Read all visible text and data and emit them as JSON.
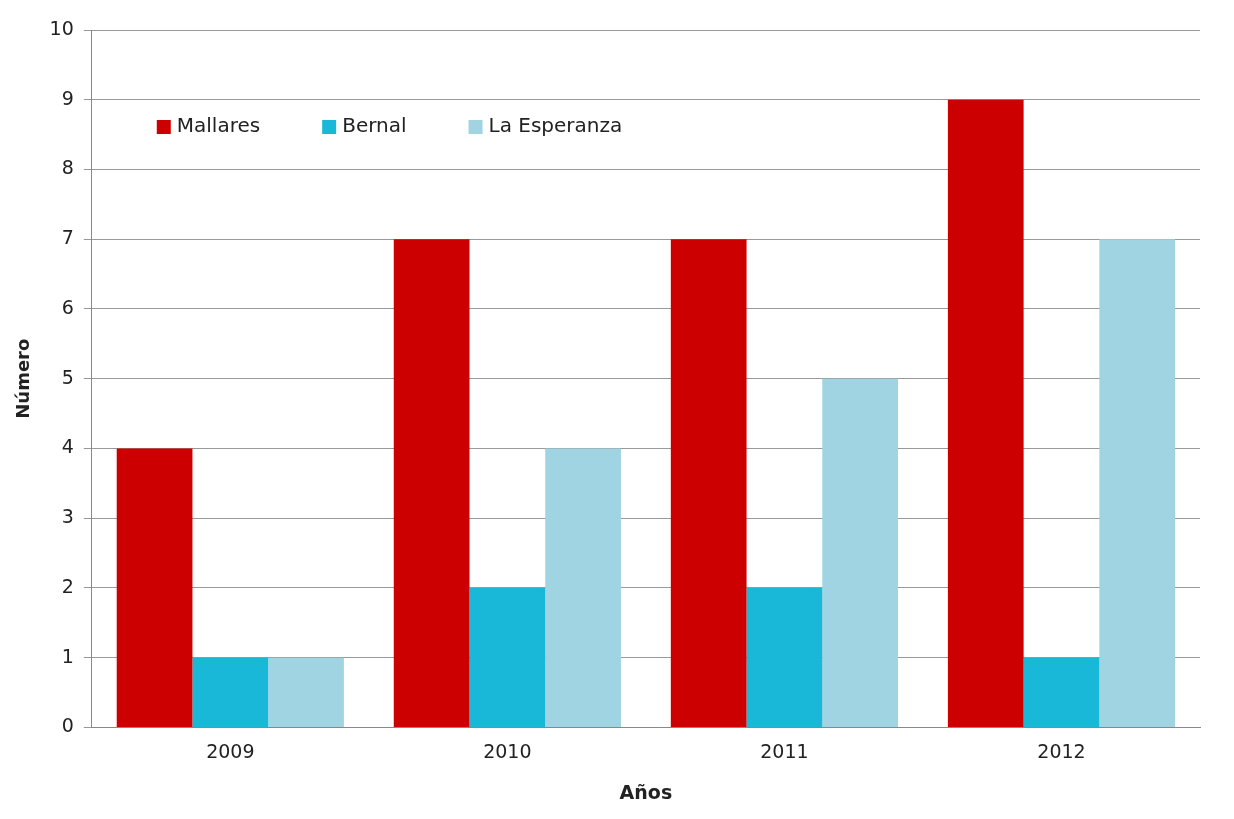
{
  "chart_data": {
    "type": "bar",
    "xlabel": "Años",
    "ylabel": "Número",
    "categories": [
      "2009",
      "2010",
      "2011",
      "2012"
    ],
    "series": [
      {
        "name": "Mallares",
        "color": "#cc0000",
        "values": [
          4,
          7,
          7,
          9
        ]
      },
      {
        "name": "Bernal",
        "color": "#1ab8d8",
        "values": [
          1,
          2,
          2,
          1
        ]
      },
      {
        "name": "La Esperanza",
        "color": "#a0d4e2",
        "values": [
          1,
          4,
          5,
          7
        ]
      }
    ],
    "ylim": [
      0,
      10
    ],
    "yticks": [
      0,
      1,
      2,
      3,
      4,
      5,
      6,
      7,
      8,
      9,
      10
    ],
    "grid": "y",
    "legend": "top left"
  }
}
